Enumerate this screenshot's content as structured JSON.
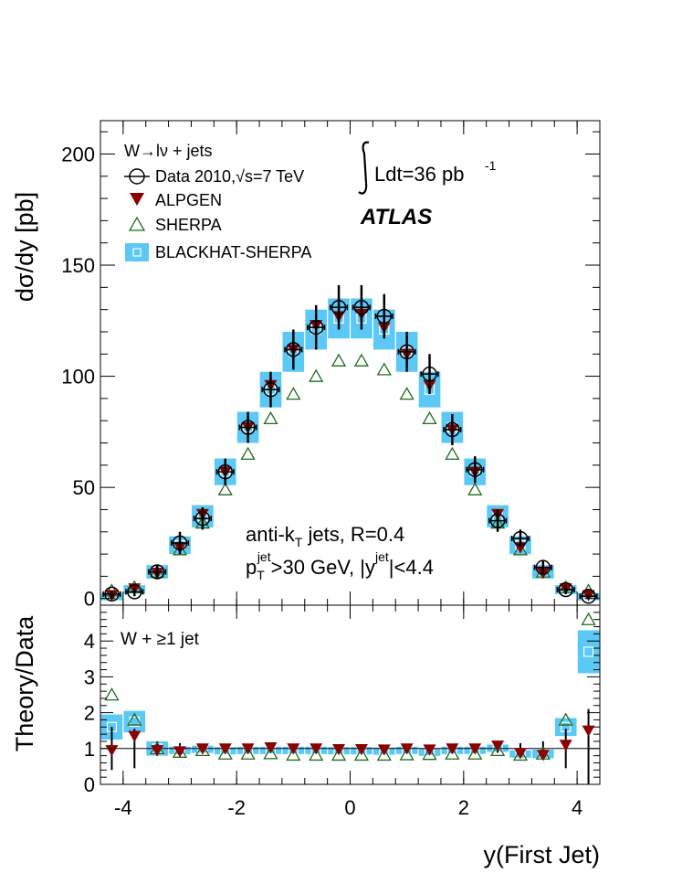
{
  "chart_data": {
    "type": "scatter",
    "title": "",
    "xlabel": "y(First Jet)",
    "experiment": "ATLAS",
    "luminosity_label": "Ldt=36 pb",
    "luminosity_exp": "-1",
    "annotation": {
      "line1_a": "anti-k",
      "line1_sub": "T",
      "line1_b": " jets, R=0.4",
      "line2_p": "p",
      "line2_sub": "T",
      "line2_sup": "jet",
      "line2_mid": ">30 GeV, |y",
      "line2_sup2": "jet",
      "line2_end": "|<4.4"
    },
    "legend": {
      "header": "W→lν + jets",
      "data": "Data 2010,√s=7 TeV",
      "alpgen": "ALPGEN",
      "sherpa": "SHERPA",
      "blackhat": "BLACKHAT-SHERPA"
    },
    "colors": {
      "alpgen": "#8b0000",
      "sherpa": "#1f6b1f",
      "blackhat": "#5bc8f5",
      "data": "#000000"
    },
    "xlim": [
      -4.4,
      4.4
    ],
    "x_ticks": [
      -4,
      -2,
      0,
      2,
      4
    ],
    "x": [
      -4.2,
      -3.8,
      -3.4,
      -3.0,
      -2.6,
      -2.2,
      -1.8,
      -1.4,
      -1.0,
      -0.6,
      -0.2,
      0.2,
      0.6,
      1.0,
      1.4,
      1.8,
      2.2,
      2.6,
      3.0,
      3.4,
      3.8,
      4.2
    ],
    "x_halfwidth": 0.2,
    "top_panel": {
      "ylabel": "dσ/dy [pb]",
      "ylim": [
        -3,
        215
      ],
      "y_ticks": [
        0,
        50,
        100,
        150,
        200
      ],
      "data": [
        2,
        3,
        12,
        25,
        36,
        57,
        77,
        94,
        112,
        122,
        131,
        131,
        127,
        111,
        101,
        76,
        58,
        35,
        27,
        14,
        4,
        1
      ],
      "data_err": [
        1.5,
        2,
        3,
        5,
        5,
        6,
        7,
        8,
        9,
        10,
        10,
        10,
        10,
        9,
        9,
        7,
        6,
        5,
        4,
        3,
        2,
        1
      ],
      "alpgen": [
        1.5,
        4.5,
        11.5,
        23,
        38,
        57,
        77,
        96,
        112,
        123,
        127,
        128,
        122,
        110,
        96,
        76,
        57,
        38,
        23,
        11.5,
        4.5,
        1.5
      ],
      "sherpa": [
        3.5,
        5,
        12,
        22,
        34,
        49,
        65,
        81,
        92,
        100,
        107,
        107,
        103,
        92,
        81,
        65,
        49,
        34,
        22,
        12,
        5,
        3.5
      ],
      "blackhat": [
        1.5,
        4,
        12,
        24,
        37,
        57,
        77,
        94,
        111,
        121,
        126,
        126,
        121,
        111,
        94,
        77,
        57,
        37,
        24,
        12,
        4,
        1.5
      ],
      "blackhat_err": [
        1,
        2,
        3,
        4,
        5,
        6,
        7,
        8,
        9,
        9,
        9,
        9,
        9,
        9,
        8,
        7,
        6,
        5,
        4,
        3,
        2,
        1
      ]
    },
    "bottom_panel": {
      "ylabel": "Theory/Data",
      "ylim": [
        0,
        5
      ],
      "y_ticks": [
        0,
        1,
        2,
        3,
        4
      ],
      "label": "W + ≥1 jet",
      "data_err": [
        0.6,
        0.55,
        0.2,
        0.15,
        0.12,
        0.1,
        0.1,
        0.1,
        0.09,
        0.09,
        0.09,
        0.09,
        0.09,
        0.09,
        0.1,
        0.1,
        0.1,
        0.12,
        0.15,
        0.2,
        0.55,
        1.1
      ],
      "alpgen": [
        0.95,
        1.35,
        0.95,
        0.92,
        1.0,
        1.0,
        1.0,
        1.03,
        1.0,
        1.0,
        0.98,
        0.98,
        0.97,
        1.0,
        0.97,
        1.0,
        1.0,
        1.08,
        0.87,
        0.82,
        1.1,
        1.5
      ],
      "sherpa": [
        2.5,
        1.8,
        1.0,
        0.9,
        0.95,
        0.85,
        0.85,
        0.86,
        0.82,
        0.82,
        0.82,
        0.82,
        0.82,
        0.83,
        0.84,
        0.85,
        0.85,
        0.95,
        0.82,
        0.85,
        1.8,
        4.6
      ],
      "blackhat": [
        1.6,
        1.75,
        1.0,
        0.95,
        1.0,
        0.97,
        0.98,
        0.98,
        0.98,
        0.98,
        0.97,
        0.97,
        0.96,
        0.98,
        0.93,
        0.98,
        0.98,
        1.03,
        0.85,
        0.85,
        1.6,
        3.7
      ],
      "blackhat_err": [
        0.35,
        0.3,
        0.2,
        0.1,
        0.08,
        0.07,
        0.07,
        0.07,
        0.07,
        0.07,
        0.07,
        0.07,
        0.07,
        0.07,
        0.07,
        0.07,
        0.07,
        0.08,
        0.1,
        0.12,
        0.25,
        0.6
      ]
    }
  }
}
